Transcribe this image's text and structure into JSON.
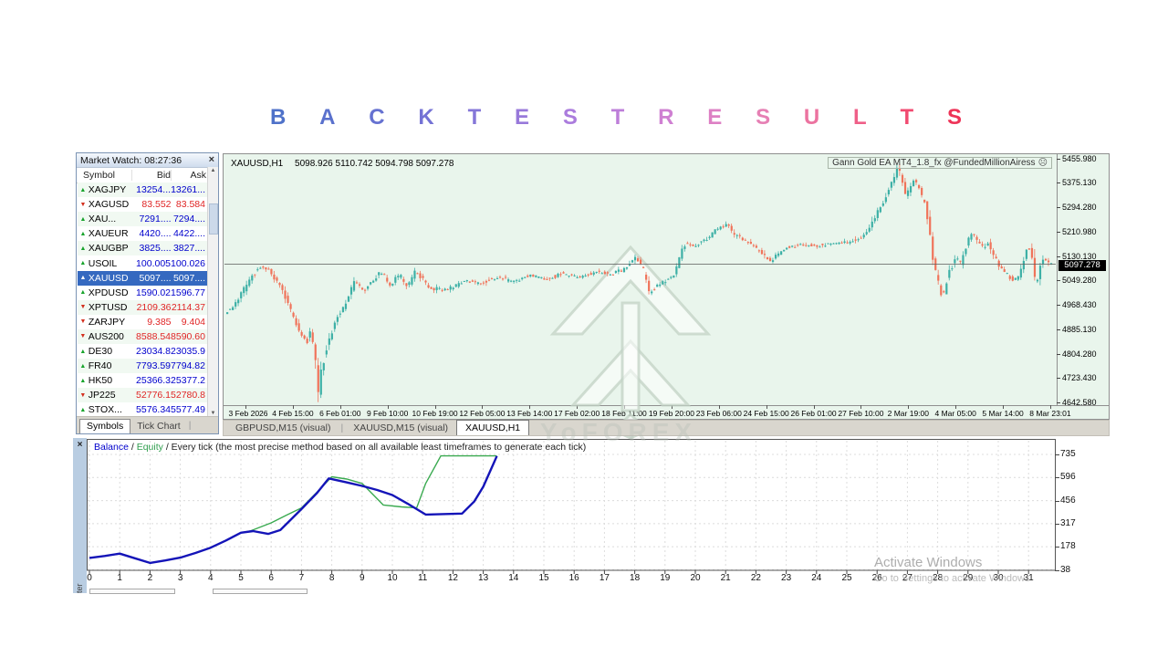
{
  "page_title": {
    "text": "BACK TEST RESULTS",
    "letter_colors": [
      "#4f72c9",
      "#5a71cd",
      "#6672d1",
      "#7472d5",
      "#8577d8",
      "#9879da",
      "#ab7cdd",
      "#bd7ed9",
      "#cf80d2",
      "#dd80c4",
      "#e680b4",
      "#ec73a0",
      "#ef5f88",
      "#f14a70",
      "#ee3458"
    ]
  },
  "market_watch": {
    "title": "Market Watch: 08:27:36",
    "close_icon": "×",
    "columns": [
      "Symbol",
      "Bid",
      "Ask"
    ],
    "rows": [
      {
        "symbol": "XAGJPY",
        "dir": "up",
        "bid": "13254...",
        "ask": "13261...",
        "selected": false
      },
      {
        "symbol": "XAGUSD",
        "dir": "down",
        "bid": "83.552",
        "ask": "83.584",
        "selected": false
      },
      {
        "symbol": "XAU...",
        "dir": "up",
        "bid": "7291....",
        "ask": "7294....",
        "selected": false
      },
      {
        "symbol": "XAUEUR",
        "dir": "up",
        "bid": "4420....",
        "ask": "4422....",
        "selected": false
      },
      {
        "symbol": "XAUGBP",
        "dir": "up",
        "bid": "3825....",
        "ask": "3827....",
        "selected": false
      },
      {
        "symbol": "USOIL",
        "dir": "up",
        "bid": "100.005",
        "ask": "100.026",
        "selected": false
      },
      {
        "symbol": "XAUUSD",
        "dir": "up",
        "bid": "5097....",
        "ask": "5097....",
        "selected": true
      },
      {
        "symbol": "XPDUSD",
        "dir": "up",
        "bid": "1590.02",
        "ask": "1596.77",
        "selected": false
      },
      {
        "symbol": "XPTUSD",
        "dir": "down",
        "bid": "2109.36",
        "ask": "2114.37",
        "selected": false
      },
      {
        "symbol": "ZARJPY",
        "dir": "down",
        "bid": "9.385",
        "ask": "9.404",
        "selected": false
      },
      {
        "symbol": "AUS200",
        "dir": "down",
        "bid": "8588.54",
        "ask": "8590.60",
        "selected": false
      },
      {
        "symbol": "DE30",
        "dir": "up",
        "bid": "23034.8",
        "ask": "23035.9",
        "selected": false
      },
      {
        "symbol": "FR40",
        "dir": "up",
        "bid": "7793.59",
        "ask": "7794.82",
        "selected": false
      },
      {
        "symbol": "HK50",
        "dir": "up",
        "bid": "25366.3",
        "ask": "25377.2",
        "selected": false
      },
      {
        "symbol": "JP225",
        "dir": "down",
        "bid": "52776.1",
        "ask": "52780.8",
        "selected": false
      },
      {
        "symbol": "STOX...",
        "dir": "up",
        "bid": "5576.34",
        "ask": "5577.49",
        "selected": false
      }
    ],
    "tabs": [
      {
        "label": "Symbols",
        "active": true
      },
      {
        "label": "Tick Chart",
        "active": false
      }
    ]
  },
  "chart": {
    "header_symbol": "XAUUSD,H1",
    "header_ohlc": "5098.926 5110.742 5094.798 5097.278",
    "ea_label": "Gann Gold EA MT4_1.8_fx @FundedMillionAiress",
    "smiley": "☹",
    "current_price": "5097.278",
    "colors": {
      "background": "#e9f5ec",
      "bullish": "#3db0a6",
      "bearish": "#f0735a",
      "price_line": "#5a5a5a"
    },
    "tabs": [
      {
        "label": "GBPUSD,M15 (visual)",
        "active": false
      },
      {
        "label": "XAUUSD,M15 (visual)",
        "active": false
      },
      {
        "label": "XAUUSD,H1",
        "active": true
      }
    ]
  },
  "chart_data": [
    {
      "type": "candlestick",
      "title": "XAUUSD,H1",
      "y_ticks": [
        "5455.980",
        "5375.130",
        "5294.280",
        "5210.980",
        "5130.130",
        "5049.280",
        "4968.430",
        "4885.130",
        "4804.280",
        "4723.430",
        "4642.580"
      ],
      "x_ticks": [
        "3 Feb 2026",
        "4 Feb 15:00",
        "6 Feb 01:00",
        "9 Feb 10:00",
        "10 Feb 19:00",
        "12 Feb 05:00",
        "13 Feb 14:00",
        "17 Feb 02:00",
        "18 Feb 11:00",
        "19 Feb 20:00",
        "23 Feb 06:00",
        "24 Feb 15:00",
        "26 Feb 01:00",
        "27 Feb 10:00",
        "2 Mar 19:00",
        "4 Mar 05:00",
        "5 Mar 14:00",
        "8 Mar 23:01"
      ],
      "price_min": 4642.58,
      "price_max": 5455.98,
      "current_price": 5097.278,
      "candle_count": 300,
      "price_path": [
        [
          0,
          4935
        ],
        [
          0.01,
          4955
        ],
        [
          0.025,
          5020
        ],
        [
          0.04,
          5085
        ],
        [
          0.052,
          5082
        ],
        [
          0.063,
          5040
        ],
        [
          0.072,
          5000
        ],
        [
          0.082,
          4930
        ],
        [
          0.092,
          4870
        ],
        [
          0.1,
          4838
        ],
        [
          0.104,
          4868
        ],
        [
          0.109,
          4820
        ],
        [
          0.113,
          4660
        ],
        [
          0.118,
          4760
        ],
        [
          0.125,
          4830
        ],
        [
          0.135,
          4913
        ],
        [
          0.148,
          4972
        ],
        [
          0.158,
          5042
        ],
        [
          0.168,
          5012
        ],
        [
          0.18,
          5042
        ],
        [
          0.19,
          5072
        ],
        [
          0.2,
          5030
        ],
        [
          0.212,
          5062
        ],
        [
          0.222,
          5022
        ],
        [
          0.232,
          5076
        ],
        [
          0.25,
          5016
        ],
        [
          0.27,
          5012
        ],
        [
          0.29,
          5042
        ],
        [
          0.31,
          5032
        ],
        [
          0.33,
          5056
        ],
        [
          0.35,
          5036
        ],
        [
          0.37,
          5062
        ],
        [
          0.39,
          5046
        ],
        [
          0.41,
          5066
        ],
        [
          0.43,
          5052
        ],
        [
          0.45,
          5072
        ],
        [
          0.47,
          5062
        ],
        [
          0.487,
          5082
        ],
        [
          0.498,
          5118
        ],
        [
          0.507,
          5090
        ],
        [
          0.515,
          5000
        ],
        [
          0.528,
          5032
        ],
        [
          0.545,
          5062
        ],
        [
          0.558,
          5165
        ],
        [
          0.572,
          5158
        ],
        [
          0.585,
          5182
        ],
        [
          0.598,
          5214
        ],
        [
          0.61,
          5228
        ],
        [
          0.622,
          5188
        ],
        [
          0.64,
          5164
        ],
        [
          0.652,
          5130
        ],
        [
          0.662,
          5108
        ],
        [
          0.68,
          5150
        ],
        [
          0.7,
          5164
        ],
        [
          0.72,
          5158
        ],
        [
          0.74,
          5166
        ],
        [
          0.76,
          5172
        ],
        [
          0.775,
          5188
        ],
        [
          0.788,
          5248
        ],
        [
          0.8,
          5310
        ],
        [
          0.81,
          5372
        ],
        [
          0.816,
          5420
        ],
        [
          0.821,
          5388
        ],
        [
          0.826,
          5315
        ],
        [
          0.831,
          5345
        ],
        [
          0.836,
          5375
        ],
        [
          0.842,
          5355
        ],
        [
          0.85,
          5288
        ],
        [
          0.856,
          5180
        ],
        [
          0.862,
          5080
        ],
        [
          0.868,
          5010
        ],
        [
          0.872,
          5000
        ],
        [
          0.877,
          5058
        ],
        [
          0.883,
          5092
        ],
        [
          0.888,
          5128
        ],
        [
          0.893,
          5100
        ],
        [
          0.9,
          5160
        ],
        [
          0.906,
          5202
        ],
        [
          0.912,
          5178
        ],
        [
          0.92,
          5152
        ],
        [
          0.926,
          5166
        ],
        [
          0.933,
          5126
        ],
        [
          0.941,
          5090
        ],
        [
          0.948,
          5064
        ],
        [
          0.956,
          5044
        ],
        [
          0.962,
          5050
        ],
        [
          0.969,
          5100
        ],
        [
          0.974,
          5158
        ],
        [
          0.979,
          5128
        ],
        [
          0.984,
          5024
        ],
        [
          0.989,
          5078
        ],
        [
          0.994,
          5126
        ],
        [
          1,
          5097
        ]
      ]
    },
    {
      "type": "line",
      "title": "Balance / Equity curve",
      "y_ticks": [
        735,
        596,
        456,
        317,
        178,
        38
      ],
      "x_ticks": [
        0,
        1,
        2,
        3,
        4,
        5,
        6,
        7,
        8,
        9,
        10,
        11,
        12,
        13,
        14,
        15,
        16,
        17,
        18,
        19,
        20,
        21,
        22,
        23,
        24,
        25,
        26,
        27,
        28,
        29,
        30,
        31
      ],
      "series": [
        {
          "name": "Balance",
          "color": "#1414b8",
          "points": [
            [
              0,
              110
            ],
            [
              0.5,
              122
            ],
            [
              1,
              136
            ],
            [
              1.5,
              108
            ],
            [
              2,
              80
            ],
            [
              2.5,
              95
            ],
            [
              3,
              112
            ],
            [
              3.5,
              140
            ],
            [
              4,
              172
            ],
            [
              4.5,
              215
            ],
            [
              5,
              262
            ],
            [
              5.4,
              272
            ],
            [
              5.9,
              255
            ],
            [
              6.3,
              278
            ],
            [
              7,
              405
            ],
            [
              7.5,
              500
            ],
            [
              7.9,
              590
            ],
            [
              8.5,
              566
            ],
            [
              9,
              545
            ],
            [
              9.5,
              520
            ],
            [
              10,
              490
            ],
            [
              10.5,
              438
            ],
            [
              11.1,
              372
            ],
            [
              12.3,
              378
            ],
            [
              12.7,
              450
            ],
            [
              13,
              540
            ],
            [
              13.45,
              725
            ]
          ]
        },
        {
          "name": "Equity",
          "color": "#3aaa50",
          "points": [
            [
              0,
              110
            ],
            [
              0.5,
              122
            ],
            [
              1,
              136
            ],
            [
              1.5,
              108
            ],
            [
              2,
              80
            ],
            [
              2.5,
              95
            ],
            [
              3,
              112
            ],
            [
              3.5,
              140
            ],
            [
              4,
              172
            ],
            [
              4.5,
              215
            ],
            [
              5,
              262
            ],
            [
              5.3,
              272
            ],
            [
              5.7,
              300
            ],
            [
              6,
              322
            ],
            [
              6.5,
              368
            ],
            [
              7,
              412
            ],
            [
              7.5,
              505
            ],
            [
              8,
              600
            ],
            [
              8.5,
              586
            ],
            [
              9,
              560
            ],
            [
              9.7,
              430
            ],
            [
              10.3,
              418
            ],
            [
              10.8,
              412
            ],
            [
              11.1,
              560
            ],
            [
              11.6,
              726
            ],
            [
              13.45,
              726
            ]
          ]
        }
      ]
    }
  ],
  "tester": {
    "close_icon": "×",
    "legend_balance": "Balance",
    "legend_equity": "Equity",
    "legend_sep": " / ",
    "legend_desc": "Every tick (the most precise method based on all available least timeframes to generate each tick)",
    "vertical_tab": "Tester"
  },
  "watermarks": {
    "logo_text": "YoFOREX",
    "activate_line1": "Activate Windows",
    "activate_line2": "Go to Settings to activate Windows"
  }
}
